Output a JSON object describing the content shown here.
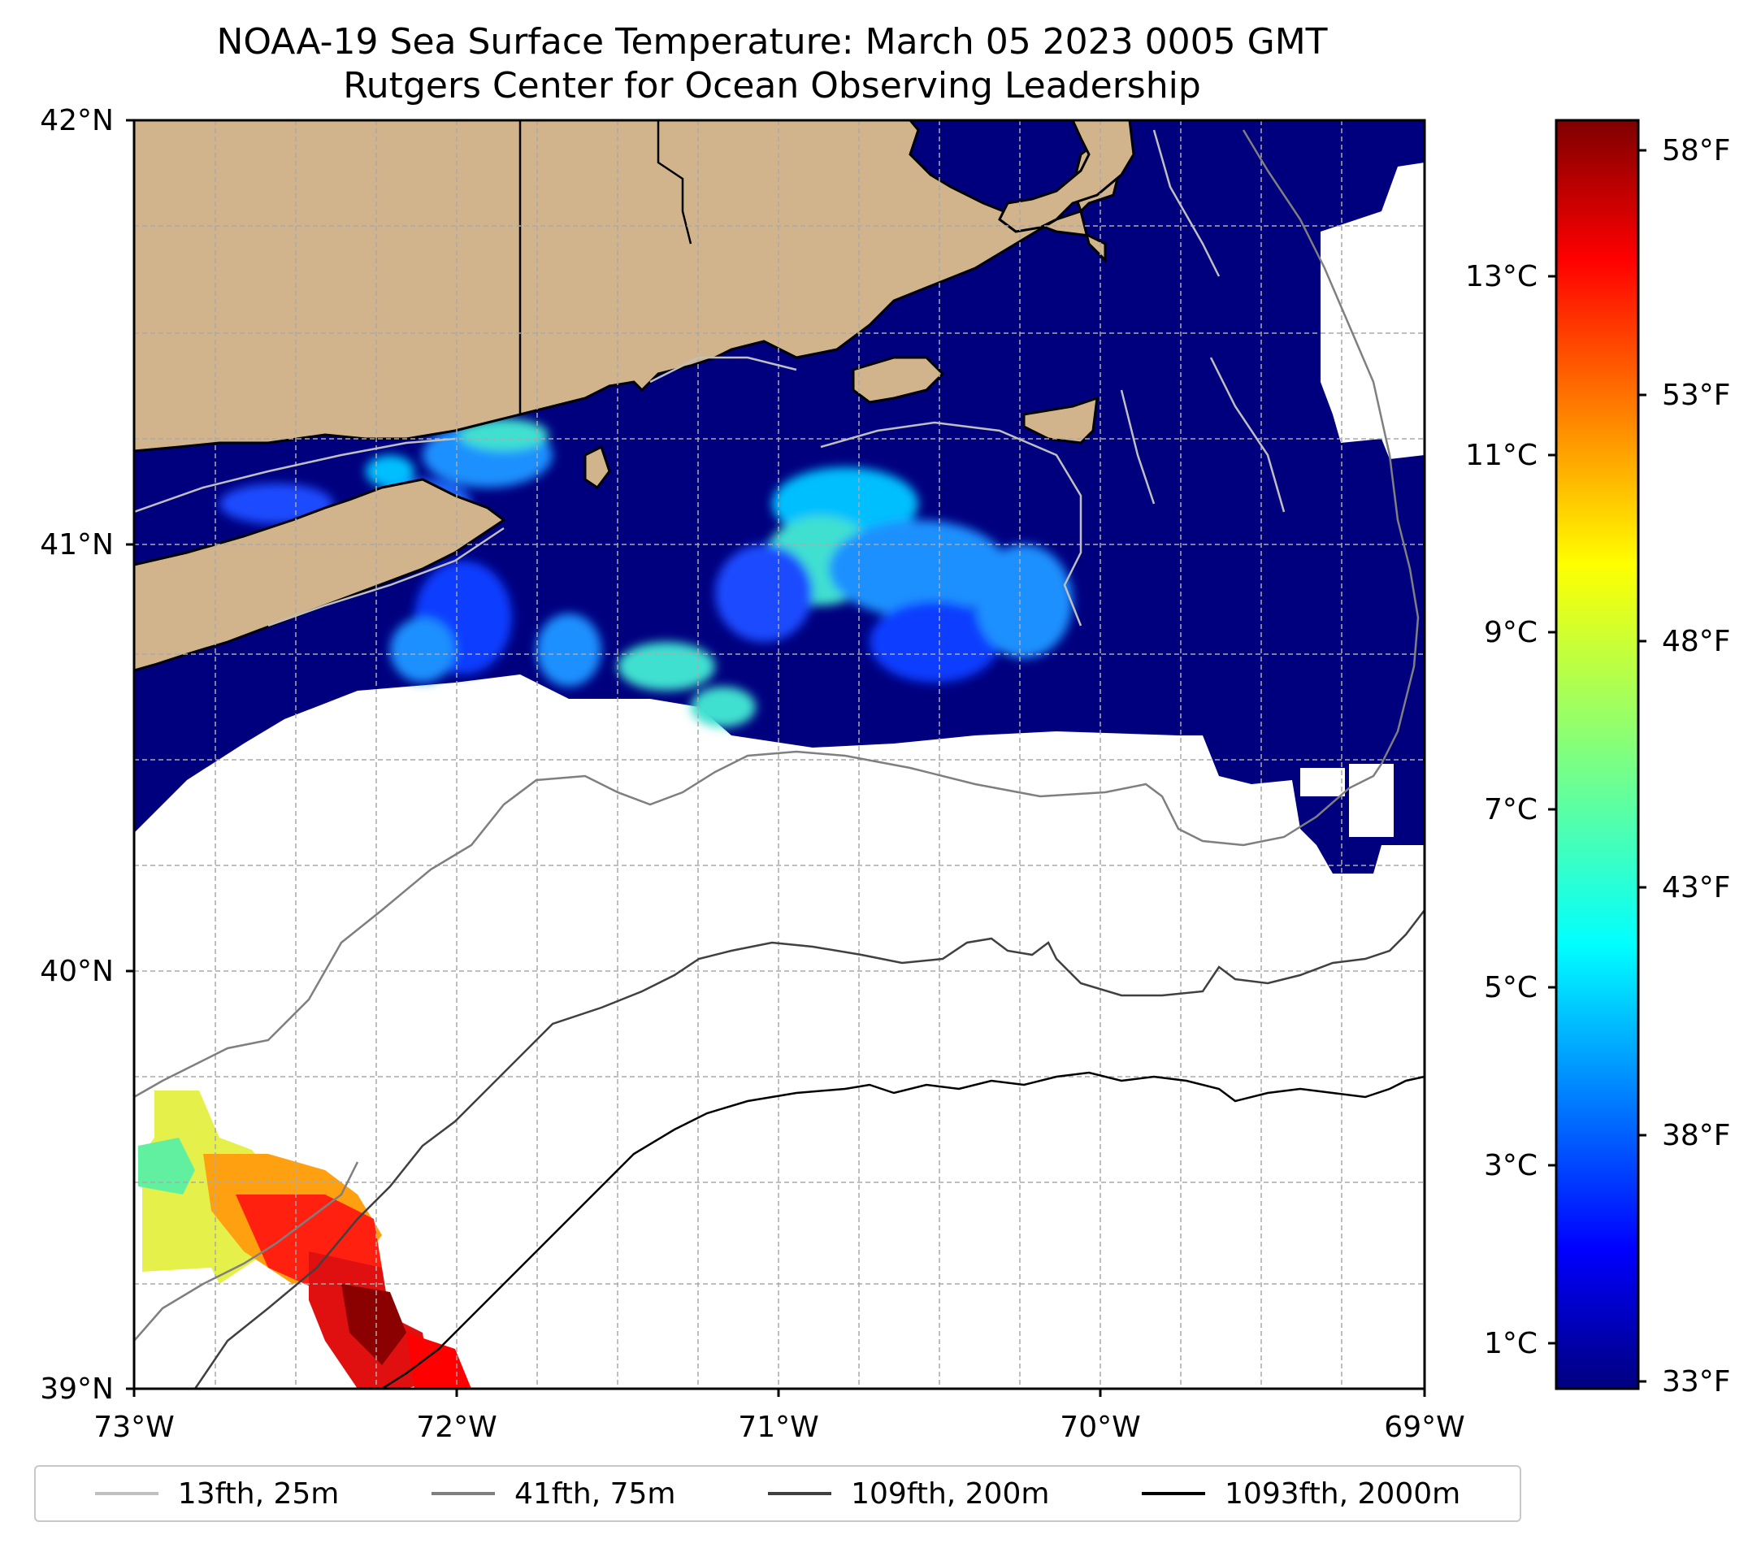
{
  "title": {
    "line1": "NOAA-19 Sea Surface Temperature: March 05 2023 0005 GMT",
    "line2": "Rutgers Center for Ocean Observing Leadership"
  },
  "map": {
    "lat_range": [
      39,
      42
    ],
    "lon_range": [
      -73,
      -69
    ],
    "lat_ticks": [
      "42°N",
      "41°N",
      "40°N",
      "39°N"
    ],
    "lon_ticks": [
      "73°W",
      "72°W",
      "71°W",
      "70°W",
      "69°W"
    ],
    "land_color": "#d2b48c",
    "cold_water_color": "#00007f"
  },
  "colorbar": {
    "celsius_ticks": [
      "13°C",
      "11°C",
      "9°C",
      "7°C",
      "5°C",
      "3°C",
      "1°C"
    ],
    "fahrenheit_ticks": [
      "58°F",
      "53°F",
      "48°F",
      "43°F",
      "38°F",
      "33°F"
    ],
    "colormap": "jet"
  },
  "legend": {
    "items": [
      {
        "label": "13fth, 25m",
        "color": "#bfbfbf"
      },
      {
        "label": "41fth, 75m",
        "color": "#7f7f7f"
      },
      {
        "label": "109fth, 200m",
        "color": "#404040"
      },
      {
        "label": "1093fth, 2000m",
        "color": "#000000"
      }
    ]
  }
}
